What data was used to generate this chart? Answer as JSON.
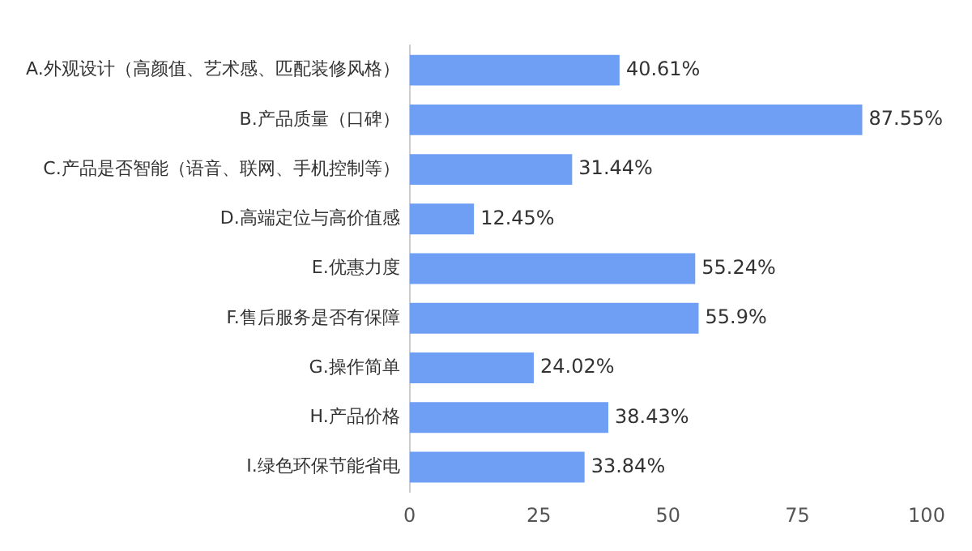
{
  "chart_data": {
    "type": "bar",
    "orientation": "horizontal",
    "categories": [
      "A.外观设计（高颜值、艺术感、匹配装修风格）",
      "B.产品质量（口碑）",
      "C.产品是否智能（语音、联网、手机控制等）",
      "D.高端定位与高价值感",
      "E.优惠力度",
      "F.售后服务是否有保障",
      "G.操作简单",
      "H.产品价格",
      "I.绿色环保节能省电"
    ],
    "values": [
      40.61,
      87.55,
      31.44,
      12.45,
      55.24,
      55.9,
      24.02,
      38.43,
      33.84
    ],
    "value_labels": [
      "40.61%",
      "87.55%",
      "31.44%",
      "12.45%",
      "55.24%",
      "55.9%",
      "24.02%",
      "38.43%",
      "33.84%"
    ],
    "color": "#6f9ef5",
    "xlim": [
      0,
      100
    ],
    "xticks": [
      0,
      25,
      50,
      75,
      100
    ]
  }
}
